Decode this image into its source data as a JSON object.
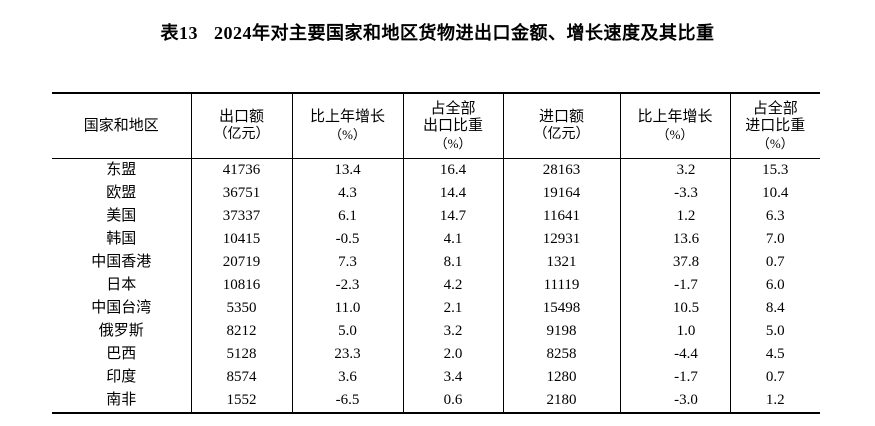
{
  "title": {
    "prefix": "表13",
    "text": "2024年对主要国家和地区货物进出口金额、增长速度及其比重"
  },
  "table": {
    "headers": {
      "region": {
        "l1": "国家和地区"
      },
      "export_value": {
        "l1": "出口额",
        "l2": "（亿元）"
      },
      "export_growth": {
        "l1": "比上年增长",
        "l2": "（%）"
      },
      "export_share": {
        "l1": "占全部",
        "l2": "出口比重",
        "l3": "（%）"
      },
      "import_value": {
        "l1": "进口额",
        "l2": "（亿元）"
      },
      "import_growth": {
        "l1": "比上年增长",
        "l2": "（%）"
      },
      "import_share": {
        "l1": "占全部",
        "l2": "进口比重",
        "l3": "（%）"
      }
    },
    "rows": [
      [
        "东盟",
        "41736",
        "13.4",
        "16.4",
        "28163",
        "3.2",
        "15.3"
      ],
      [
        "欧盟",
        "36751",
        "4.3",
        "14.4",
        "19164",
        "-3.3",
        "10.4"
      ],
      [
        "美国",
        "37337",
        "6.1",
        "14.7",
        "11641",
        "1.2",
        "6.3"
      ],
      [
        "韩国",
        "10415",
        "-0.5",
        "4.1",
        "12931",
        "13.6",
        "7.0"
      ],
      [
        "中国香港",
        "20719",
        "7.3",
        "8.1",
        "1321",
        "37.8",
        "0.7"
      ],
      [
        "日本",
        "10816",
        "-2.3",
        "4.2",
        "11119",
        "-1.7",
        "6.0"
      ],
      [
        "中国台湾",
        "5350",
        "11.0",
        "2.1",
        "15498",
        "10.5",
        "8.4"
      ],
      [
        "俄罗斯",
        "8212",
        "5.0",
        "3.2",
        "9198",
        "1.0",
        "5.0"
      ],
      [
        "巴西",
        "5128",
        "23.3",
        "2.0",
        "8258",
        "-4.4",
        "4.5"
      ],
      [
        "印度",
        "8574",
        "3.6",
        "3.4",
        "1280",
        "-1.7",
        "0.7"
      ],
      [
        "南非",
        "1552",
        "-6.5",
        "0.6",
        "2180",
        "-3.0",
        "1.2"
      ]
    ]
  }
}
